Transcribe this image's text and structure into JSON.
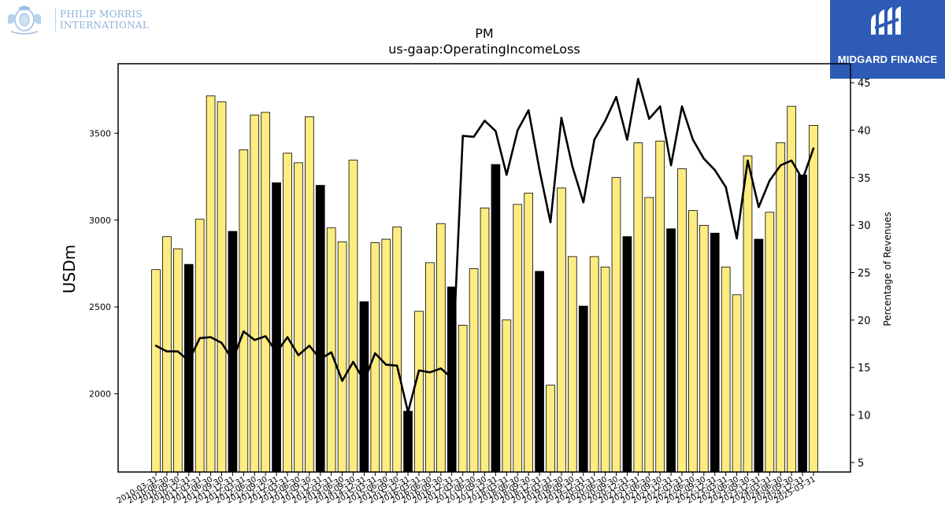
{
  "logos": {
    "left": {
      "line1": "PHILIP MORRIS",
      "line2": "INTERNATIONAL"
    },
    "right": {
      "name": "MIDGARD FINANCE"
    }
  },
  "chart_data": {
    "type": "bar",
    "title": "PM",
    "subtitle": "us-gaap:OperatingIncomeLoss",
    "ylabel": "USDm",
    "y2label": "Percentage of Revenues",
    "ylim": [
      1550,
      3900
    ],
    "y2lim": [
      4,
      47
    ],
    "yticks": [
      2000,
      2500,
      3000,
      3500
    ],
    "y2ticks": [
      5,
      10,
      15,
      20,
      25,
      30,
      35,
      40,
      45
    ],
    "grid": false,
    "colors": {
      "quarter": "#ffec80",
      "annual": "#000000",
      "line": "#000000",
      "edge": "#000000"
    },
    "categories": [
      "2010-03-31",
      "2010-06-30",
      "2010-09-30",
      "2010-12-31",
      "2011-03-31",
      "2011-06-30",
      "2011-09-30",
      "2011-12-31",
      "2012-03-31",
      "2012-06-30",
      "2012-09-30",
      "2012-12-31",
      "2013-03-31",
      "2013-06-30",
      "2013-09-30",
      "2013-12-31",
      "2014-03-31",
      "2014-06-30",
      "2014-09-30",
      "2014-12-31",
      "2015-03-31",
      "2015-06-30",
      "2015-09-30",
      "2015-12-31",
      "2016-03-31",
      "2016-06-30",
      "2016-09-30",
      "2016-12-31",
      "2017-03-31",
      "2017-06-30",
      "2017-09-30",
      "2017-12-31",
      "2018-03-31",
      "2018-06-30",
      "2018-09-30",
      "2018-12-31",
      "2019-03-31",
      "2019-06-30",
      "2019-09-30",
      "2019-12-31",
      "2020-03-31",
      "2020-06-30",
      "2020-09-30",
      "2020-12-31",
      "2021-03-31",
      "2021-06-30",
      "2021-09-30",
      "2021-12-31",
      "2022-03-31",
      "2022-06-30",
      "2022-09-30",
      "2022-12-31",
      "2023-03-31",
      "2023-06-30",
      "2023-09-30",
      "2023-12-31",
      "2024-03-31",
      "2024-06-30",
      "2024-09-30",
      "2024-12-31",
      "2025-03-31"
    ],
    "annual_flags": [
      0,
      0,
      0,
      1,
      0,
      0,
      0,
      1,
      0,
      0,
      0,
      1,
      0,
      0,
      0,
      1,
      0,
      0,
      0,
      1,
      0,
      0,
      0,
      1,
      0,
      0,
      0,
      1,
      0,
      0,
      0,
      1,
      0,
      0,
      0,
      1,
      0,
      0,
      0,
      1,
      0,
      0,
      0,
      1,
      0,
      0,
      0,
      1,
      0,
      0,
      0,
      1,
      0,
      0,
      0,
      1,
      0,
      0,
      0,
      1,
      0
    ],
    "series": [
      {
        "name": "",
        "kind": "bar",
        "axis": "left",
        "values": [
          2715,
          2905,
          2835,
          2745,
          3005,
          3715,
          3680,
          2935,
          3405,
          3605,
          3620,
          3215,
          3385,
          3330,
          3595,
          3200,
          2955,
          2875,
          3345,
          2530,
          2870,
          2890,
          2960,
          1900,
          2475,
          2755,
          2980,
          2615,
          2395,
          2720,
          3070,
          3320,
          2425,
          3090,
          3155,
          2705,
          2050,
          3185,
          2790,
          2505,
          2790,
          2730,
          3245,
          2905,
          3445,
          3130,
          3455,
          2950,
          3295,
          3055,
          2970,
          2925,
          2730,
          2570,
          3370,
          2890,
          3045,
          3445,
          3655,
          3260,
          3545
        ]
      },
      {
        "name": "",
        "kind": "line",
        "axis": "right",
        "values": [
          17.3,
          16.7,
          16.7,
          15.7,
          18.1,
          18.2,
          17.6,
          15.8,
          18.8,
          17.9,
          18.3,
          16.6,
          18.2,
          16.3,
          17.3,
          15.9,
          16.6,
          13.6,
          15.6,
          13.6,
          16.5,
          15.3,
          15.2,
          10.3,
          14.7,
          14.5,
          14.9,
          13.9,
          39.4,
          39.3,
          41.0,
          39.9,
          35.3,
          40.0,
          42.1,
          35.8,
          30.3,
          41.3,
          36.2,
          32.4,
          39.0,
          41.0,
          43.5,
          39.0,
          45.4,
          41.2,
          42.5,
          36.3,
          42.5,
          39.0,
          37.0,
          35.8,
          34.0,
          28.6,
          36.8,
          31.9,
          34.7,
          36.3,
          36.8,
          34.8,
          38.1
        ]
      }
    ]
  }
}
